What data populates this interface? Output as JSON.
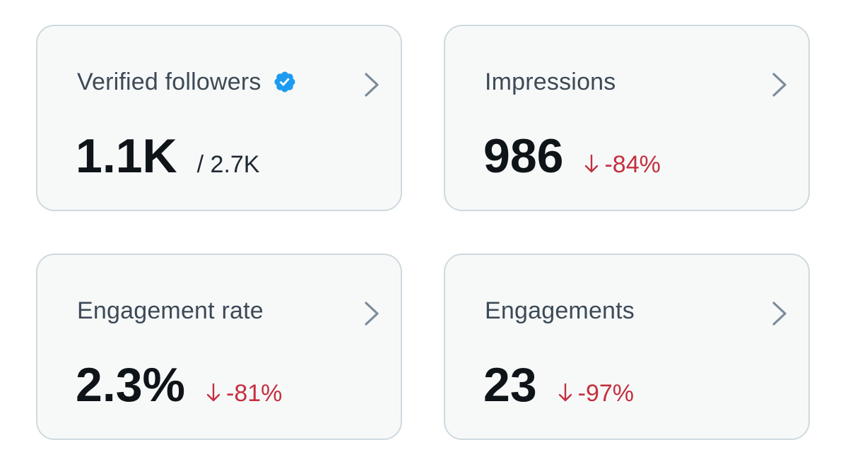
{
  "cards": [
    {
      "title": "Verified followers",
      "value": "1.1K",
      "secondary": "/ 2.7K",
      "icons": [
        "verified-badge-icon",
        "chevron-right-icon"
      ]
    },
    {
      "title": "Impressions",
      "value": "986",
      "change": "-84%",
      "icons": [
        "arrow-down-icon",
        "chevron-right-icon"
      ]
    },
    {
      "title": "Engagement rate",
      "value": "2.3%",
      "change": "-81%",
      "icons": [
        "arrow-down-icon",
        "chevron-right-icon"
      ]
    },
    {
      "title": "Engagements",
      "value": "23",
      "change": "-97%",
      "icons": [
        "arrow-down-icon",
        "chevron-right-icon"
      ]
    }
  ],
  "colors": {
    "card_background": "#f7f9f9",
    "card_border": "#cfd9de",
    "title_text": "#3d4a56",
    "value_text": "#0f1419",
    "negative_change": "#c4303e",
    "verified_badge": "#1d9bf0",
    "chevron": "#7a8b99"
  }
}
